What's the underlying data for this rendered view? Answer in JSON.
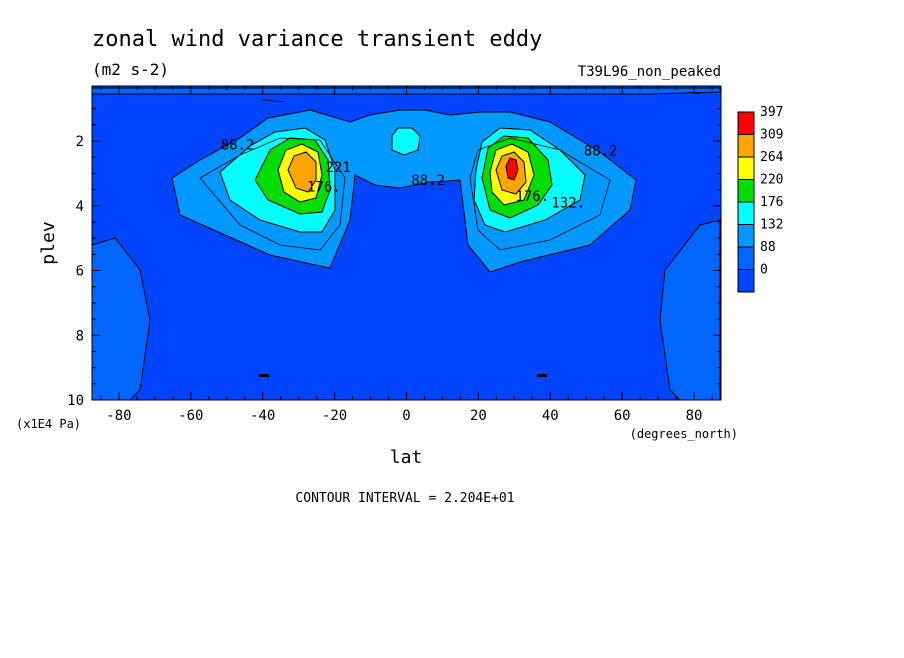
{
  "chart_data": {
    "type": "heatmap",
    "title": "zonal wind variance transient eddy",
    "units": "(m2 s-2)",
    "run_label": "T39L96_non_peaked",
    "xlabel": "lat",
    "xunits": "(degrees_north)",
    "ylabel": "plev",
    "yunits": "(x1E4 Pa)",
    "footer": "CONTOUR INTERVAL = 2.204E+01",
    "xlim": [
      -87.5,
      87.5
    ],
    "ylim": [
      10,
      0.3
    ],
    "xticks": [
      -80,
      -60,
      -40,
      -20,
      0,
      20,
      40,
      60,
      80
    ],
    "yticks": [
      2,
      4,
      6,
      8,
      10
    ],
    "legend": {
      "placement": "right",
      "labels": [
        "397",
        "309",
        "264",
        "220",
        "176",
        "132",
        "88",
        "0"
      ],
      "colors": [
        "#ff0000",
        "#ffa500",
        "#ffff00",
        "#00dd00",
        "#00ffff",
        "#0099ff",
        "#0066ff",
        "#0044ff"
      ]
    },
    "contour_labels": [
      {
        "text": "88.2",
        "lat": -47,
        "plev": 2.1
      },
      {
        "text": "88.2",
        "lat": 54,
        "plev": 2.3
      },
      {
        "text": "88.2",
        "lat": 6,
        "plev": 3.2
      },
      {
        "text": "176.",
        "lat": -23,
        "plev": 3.4
      },
      {
        "text": "221",
        "lat": -19,
        "plev": 2.8
      },
      {
        "text": "176.",
        "lat": 35,
        "plev": 3.7
      },
      {
        "text": "132.",
        "lat": 45,
        "plev": 3.9
      }
    ],
    "maxima": [
      {
        "lat": -29,
        "plev": 2.8,
        "value_range": "264-309"
      },
      {
        "lat": 29,
        "plev": 2.8,
        "value_range": "309-397"
      }
    ]
  }
}
